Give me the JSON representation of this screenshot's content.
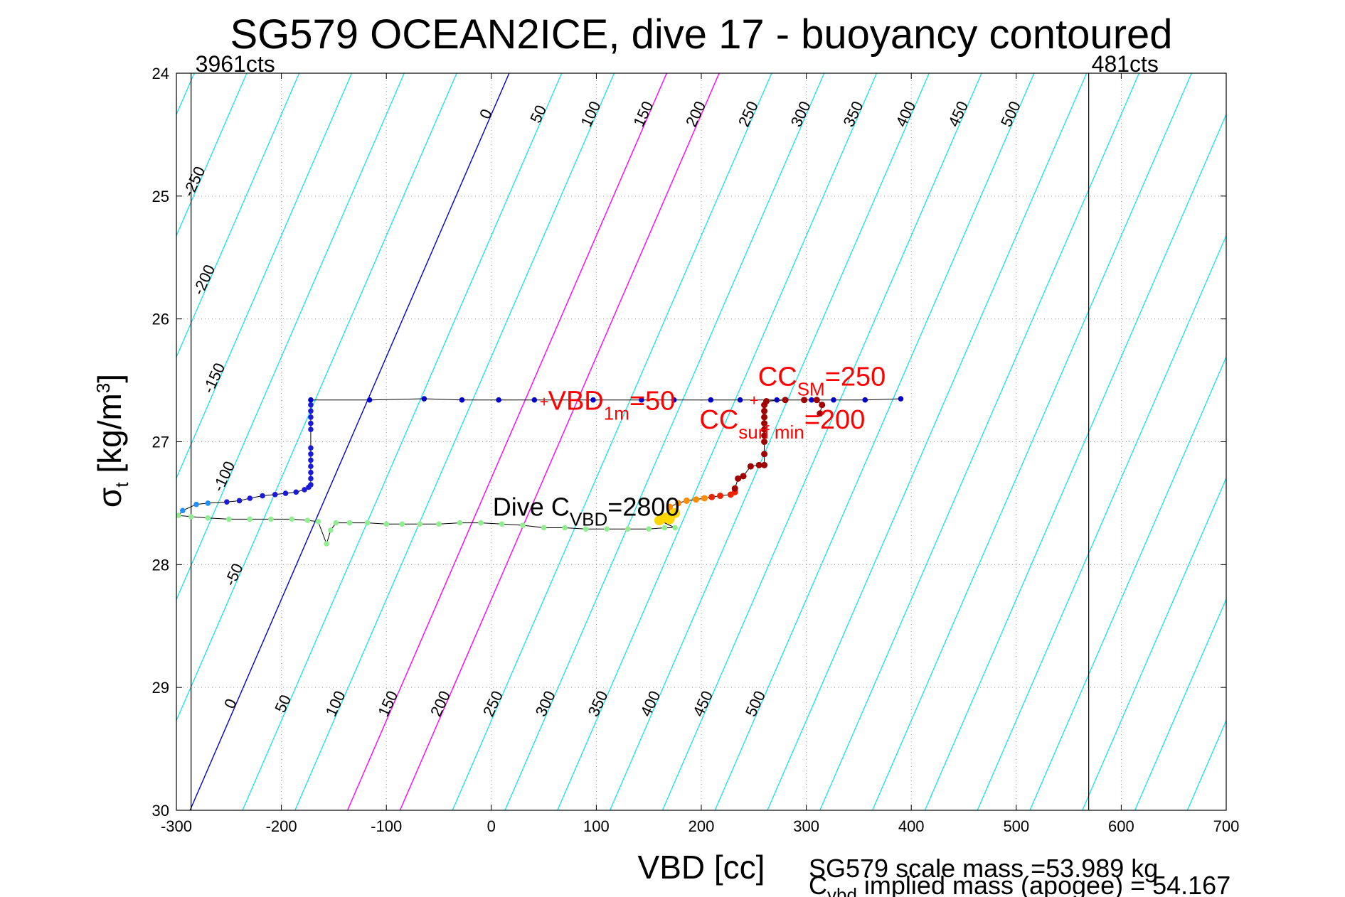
{
  "title": "SG579 OCEAN2ICE, dive 17 - buoyancy contoured",
  "colors": {
    "contour": "#00e5ee",
    "contour_zero": "#0000cd",
    "contour_highlight": "#ff00ff",
    "grid": "#999999",
    "annotation": "#ff0000",
    "trace": "#000000"
  },
  "counts": {
    "left_label": "3961cts",
    "left_vbd": -286,
    "right_label": "481cts",
    "right_vbd": 569
  },
  "annotations": {
    "vbd1m": {
      "main": "VBD",
      "sub": "1m",
      "tail": "=50",
      "vbd": 50,
      "sigma": 26.67
    },
    "ccsm": {
      "main": "CC",
      "sub": "SM",
      "tail": "=250",
      "vbd": 250,
      "sigma": 26.66
    },
    "ccsurf": {
      "main": "CC",
      "sub": "surf min",
      "tail": "=200",
      "vbd": 205,
      "sigma": 26.72
    },
    "divecvbd": {
      "main": "Dive C",
      "sub": "VBD",
      "tail": "=2800",
      "vbd": 0,
      "sigma": 27.67
    }
  },
  "notes": {
    "mass_line1": "SG579 scale mass =53.989 kg",
    "mass_line2_main": "C",
    "mass_line2_sub": "vbd",
    "mass_line2_tail": " implied mass (apogee) = 54.167"
  },
  "chart_data": {
    "type": "scatter",
    "title": "SG579 OCEAN2ICE, dive 17 - buoyancy contoured",
    "xlabel": "VBD [cc]",
    "ylabel": "σt [kg/m3]",
    "xlim": [
      -300,
      700
    ],
    "ylim": [
      30,
      24
    ],
    "y_reversed": true,
    "xticks": [
      -300,
      -200,
      -100,
      0,
      100,
      200,
      300,
      400,
      500,
      600,
      700
    ],
    "yticks": [
      24,
      25,
      26,
      27,
      28,
      29,
      30
    ],
    "grid": true,
    "contours": {
      "levels": [
        -250,
        -200,
        -150,
        -100,
        -50,
        0,
        50,
        100,
        150,
        200,
        250,
        300,
        350,
        400,
        450,
        500
      ],
      "top_labels": [
        0,
        50,
        100,
        150,
        200,
        250,
        300,
        350,
        400,
        450,
        500
      ],
      "bottom_labels": [
        0,
        50,
        100,
        150,
        200,
        250,
        300,
        350,
        400,
        450,
        500
      ],
      "left_labels": [
        -250,
        -200,
        -150,
        -100,
        -50
      ],
      "highlight_levels": [
        150,
        200
      ],
      "zero_level": 0,
      "vbd_at_sigma24_for_zero": 17,
      "vbd_at_sigma30_for_zero": -287,
      "spacing_vbd": 50
    },
    "series": [
      {
        "color": "#0000cd",
        "points": [
          [
            -172,
            26.66
          ],
          [
            -116,
            26.66
          ],
          [
            -64,
            26.65
          ],
          [
            -28,
            26.66
          ],
          [
            7,
            26.66
          ],
          [
            41,
            26.66
          ],
          [
            97,
            26.66
          ],
          [
            143,
            26.66
          ],
          [
            174,
            26.66
          ],
          [
            209,
            26.66
          ],
          [
            237,
            26.66
          ],
          [
            272,
            26.66
          ],
          [
            305,
            26.66
          ],
          [
            326,
            26.66
          ],
          [
            356,
            26.66
          ],
          [
            390,
            26.65
          ]
        ]
      },
      {
        "color": "#1a1ad8",
        "points": [
          [
            -172,
            26.7
          ],
          [
            -172,
            26.75
          ],
          [
            -172,
            26.8
          ],
          [
            -172,
            26.85
          ],
          [
            -172,
            26.9
          ],
          [
            -172,
            27.05
          ],
          [
            -172,
            27.1
          ],
          [
            -172,
            27.15
          ],
          [
            -172,
            27.2
          ],
          [
            -172,
            27.25
          ],
          [
            -172,
            27.3
          ],
          [
            -172,
            27.35
          ],
          [
            -174,
            27.37
          ],
          [
            -178,
            27.39
          ],
          [
            -186,
            27.41
          ],
          [
            -196,
            27.42
          ],
          [
            -206,
            27.43
          ],
          [
            -218,
            27.44
          ],
          [
            -230,
            27.46
          ],
          [
            -240,
            27.48
          ],
          [
            -252,
            27.49
          ]
        ]
      },
      {
        "color": "#1e90ff",
        "points": [
          [
            -270,
            27.5
          ],
          [
            -281,
            27.51
          ],
          [
            -294,
            27.56
          ]
        ]
      },
      {
        "color": "#90ee90",
        "points": [
          [
            -298,
            27.6
          ],
          [
            -286,
            27.61
          ],
          [
            -270,
            27.62
          ],
          [
            -250,
            27.63
          ],
          [
            -230,
            27.63
          ],
          [
            -210,
            27.63
          ],
          [
            -190,
            27.63
          ],
          [
            -175,
            27.64
          ],
          [
            -165,
            27.65
          ],
          [
            -157,
            27.83
          ],
          [
            -153,
            27.72
          ],
          [
            -148,
            27.66
          ],
          [
            -135,
            27.66
          ],
          [
            -118,
            27.66
          ],
          [
            -100,
            27.67
          ],
          [
            -85,
            27.67
          ],
          [
            -68,
            27.67
          ],
          [
            -50,
            27.67
          ],
          [
            -30,
            27.66
          ],
          [
            -10,
            27.66
          ],
          [
            10,
            27.67
          ],
          [
            30,
            27.68
          ],
          [
            50,
            27.7
          ],
          [
            70,
            27.7
          ],
          [
            90,
            27.71
          ],
          [
            110,
            27.71
          ],
          [
            130,
            27.71
          ],
          [
            150,
            27.71
          ],
          [
            165,
            27.7
          ],
          [
            175,
            27.7
          ]
        ]
      },
      {
        "color": "#ffd700",
        "points": [
          [
            160,
            27.64
          ],
          [
            165,
            27.62
          ],
          [
            170,
            27.6
          ],
          [
            175,
            27.58
          ],
          [
            170,
            27.63
          ]
        ]
      },
      {
        "color": "#ff8c00",
        "points": [
          [
            170,
            27.53
          ],
          [
            178,
            27.5
          ],
          [
            186,
            27.48
          ],
          [
            195,
            27.47
          ],
          [
            203,
            27.46
          ]
        ]
      },
      {
        "color": "#ee2200",
        "points": [
          [
            210,
            27.45
          ],
          [
            218,
            27.44
          ],
          [
            228,
            27.43
          ],
          [
            232,
            27.41
          ]
        ]
      },
      {
        "color": "#a00000",
        "points": [
          [
            232,
            27.38
          ],
          [
            235,
            27.3
          ],
          [
            240,
            27.28
          ],
          [
            247,
            27.2
          ],
          [
            255,
            27.19
          ],
          [
            260,
            27.19
          ],
          [
            260,
            27.1
          ],
          [
            260,
            27.0
          ],
          [
            260,
            26.95
          ],
          [
            260,
            26.9
          ],
          [
            260,
            26.85
          ],
          [
            260,
            26.8
          ],
          [
            260,
            26.75
          ],
          [
            260,
            26.7
          ],
          [
            262,
            26.67
          ],
          [
            280,
            26.66
          ],
          [
            298,
            26.66
          ],
          [
            310,
            26.66
          ],
          [
            315,
            26.7
          ],
          [
            313,
            26.77
          ]
        ]
      }
    ]
  }
}
